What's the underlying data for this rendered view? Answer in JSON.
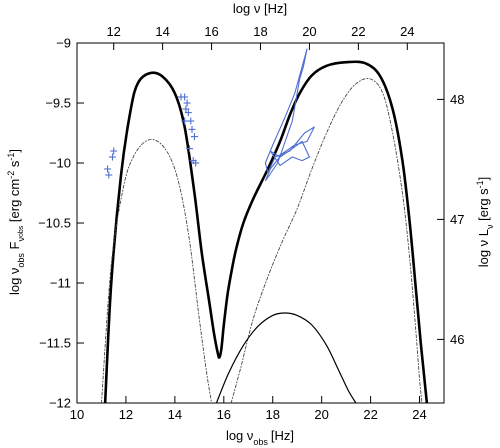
{
  "chart_data": {
    "type": "line",
    "xlabel": {
      "main": "log ν",
      "sub": "obs",
      "unit": "[Hz]"
    },
    "ylabel": {
      "main": "log ν",
      "sub1": "obs",
      "mid": " F",
      "sub2": "ν",
      "sub3": "obs",
      "unit_pre": " [erg cm",
      "sup1": "-2",
      "unit_mid": " s",
      "sup2": "-1",
      "unit_post": "]"
    },
    "x2label": "log ν [Hz]",
    "y2label": {
      "main": "log ν L",
      "sub": "ν",
      "unit_pre": " [erg s",
      "sup": "-1",
      "unit_post": "]"
    },
    "xlim": [
      10,
      25
    ],
    "ylim": [
      -12,
      -9
    ],
    "x2lim": [
      10.5,
      25.5
    ],
    "y2lim": [
      45.47,
      48.47
    ],
    "xticks": [
      10,
      12,
      14,
      16,
      18,
      20,
      22,
      24
    ],
    "yticks": [
      -12,
      -11.5,
      -11,
      -10.5,
      -10,
      -9.5,
      -9
    ],
    "x2ticks": [
      12,
      14,
      16,
      18,
      20,
      22,
      24
    ],
    "y2ticks": [
      46,
      47,
      48
    ],
    "grid": false,
    "series": [
      {
        "style": "solid-thick",
        "color": "#000000",
        "x": [
          11.15,
          11.4,
          11.8,
          12.2,
          12.5,
          13.0,
          13.5,
          14.0,
          14.4,
          14.8,
          15.1,
          15.4,
          15.6,
          15.75,
          15.82,
          15.9,
          16.0,
          16.15,
          16.3,
          16.5,
          16.8,
          17.2,
          17.8,
          18.3,
          18.7,
          19.1,
          19.6,
          20.2,
          21.0,
          21.8,
          22.4,
          22.9,
          23.3,
          23.6,
          23.85,
          24.05,
          24.2,
          24.3
        ],
        "y": [
          -12.0,
          -11.0,
          -10.1,
          -9.55,
          -9.33,
          -9.25,
          -9.28,
          -9.42,
          -9.7,
          -10.25,
          -10.75,
          -11.15,
          -11.42,
          -11.58,
          -11.62,
          -11.55,
          -11.35,
          -11.1,
          -10.92,
          -10.72,
          -10.5,
          -10.3,
          -10.05,
          -9.82,
          -9.6,
          -9.42,
          -9.27,
          -9.19,
          -9.16,
          -9.17,
          -9.28,
          -9.55,
          -9.98,
          -10.5,
          -11.05,
          -11.5,
          -11.8,
          -12.0
        ]
      },
      {
        "style": "dash-dot",
        "color": "#444444",
        "x": [
          11.0,
          11.4,
          11.9,
          12.3,
          12.8,
          13.3,
          13.8,
          14.2,
          14.6,
          15.0,
          15.3,
          15.5
        ],
        "y": [
          -12.0,
          -10.85,
          -10.2,
          -9.95,
          -9.82,
          -9.82,
          -9.95,
          -10.2,
          -10.65,
          -11.3,
          -11.75,
          -12.0
        ]
      },
      {
        "style": "dash-dot",
        "color": "#444444",
        "x": [
          16.3,
          16.7,
          17.2,
          17.8,
          18.4,
          19.0,
          19.6,
          20.2,
          20.8,
          21.4,
          22.0,
          22.5,
          22.9,
          23.3,
          23.6,
          23.85,
          24.0,
          24.1
        ],
        "y": [
          -12.0,
          -11.7,
          -11.3,
          -10.95,
          -10.65,
          -10.38,
          -10.05,
          -9.75,
          -9.5,
          -9.34,
          -9.3,
          -9.42,
          -9.75,
          -10.25,
          -10.8,
          -11.4,
          -11.8,
          -12.0
        ]
      },
      {
        "style": "solid-thin",
        "color": "#000000",
        "x": [
          15.7,
          16.2,
          16.8,
          17.4,
          18.0,
          18.5,
          19.0,
          19.6,
          20.2,
          20.7,
          21.1,
          21.4
        ],
        "y": [
          -12.0,
          -11.75,
          -11.52,
          -11.36,
          -11.27,
          -11.25,
          -11.27,
          -11.35,
          -11.52,
          -11.73,
          -11.9,
          -12.0
        ]
      }
    ],
    "observations_crosses": [
      {
        "x": 11.25,
        "y": -10.05
      },
      {
        "x": 11.3,
        "y": -10.1
      },
      {
        "x": 11.45,
        "y": -9.95
      },
      {
        "x": 11.5,
        "y": -9.9
      },
      {
        "x": 14.25,
        "y": -9.45
      },
      {
        "x": 14.4,
        "y": -9.45
      },
      {
        "x": 14.45,
        "y": -9.55
      },
      {
        "x": 14.5,
        "y": -9.5
      },
      {
        "x": 14.55,
        "y": -9.58
      },
      {
        "x": 14.4,
        "y": -9.65
      },
      {
        "x": 14.65,
        "y": -9.65
      },
      {
        "x": 14.7,
        "y": -9.72
      },
      {
        "x": 14.8,
        "y": -9.78
      },
      {
        "x": 14.6,
        "y": -9.88
      },
      {
        "x": 14.75,
        "y": -9.98
      },
      {
        "x": 14.85,
        "y": -10.0
      }
    ],
    "observations_bowties": [
      {
        "x": [
          17.7,
          18.2,
          18.8,
          19.1,
          19.25,
          19.4,
          18.9,
          18.5,
          18.0,
          17.7,
          17.8,
          18.1,
          18.7,
          19.3,
          19.7,
          19.4,
          18.9,
          18.4,
          17.9,
          17.7
        ],
        "y": [
          -10.15,
          -10.0,
          -9.65,
          -9.3,
          -9.2,
          -9.05,
          -9.42,
          -9.62,
          -9.85,
          -10.0,
          -10.08,
          -9.95,
          -9.9,
          -9.75,
          -9.7,
          -9.82,
          -9.85,
          -9.92,
          -10.05,
          -10.15
        ]
      },
      {
        "x": [
          17.9,
          18.3,
          18.8,
          19.2,
          19.5,
          19.2,
          18.8,
          18.3,
          17.9
        ],
        "y": [
          -9.9,
          -9.95,
          -9.88,
          -9.82,
          -9.95,
          -9.98,
          -9.95,
          -10.02,
          -9.9
        ]
      }
    ],
    "observation_color": "#4f6fcf"
  }
}
